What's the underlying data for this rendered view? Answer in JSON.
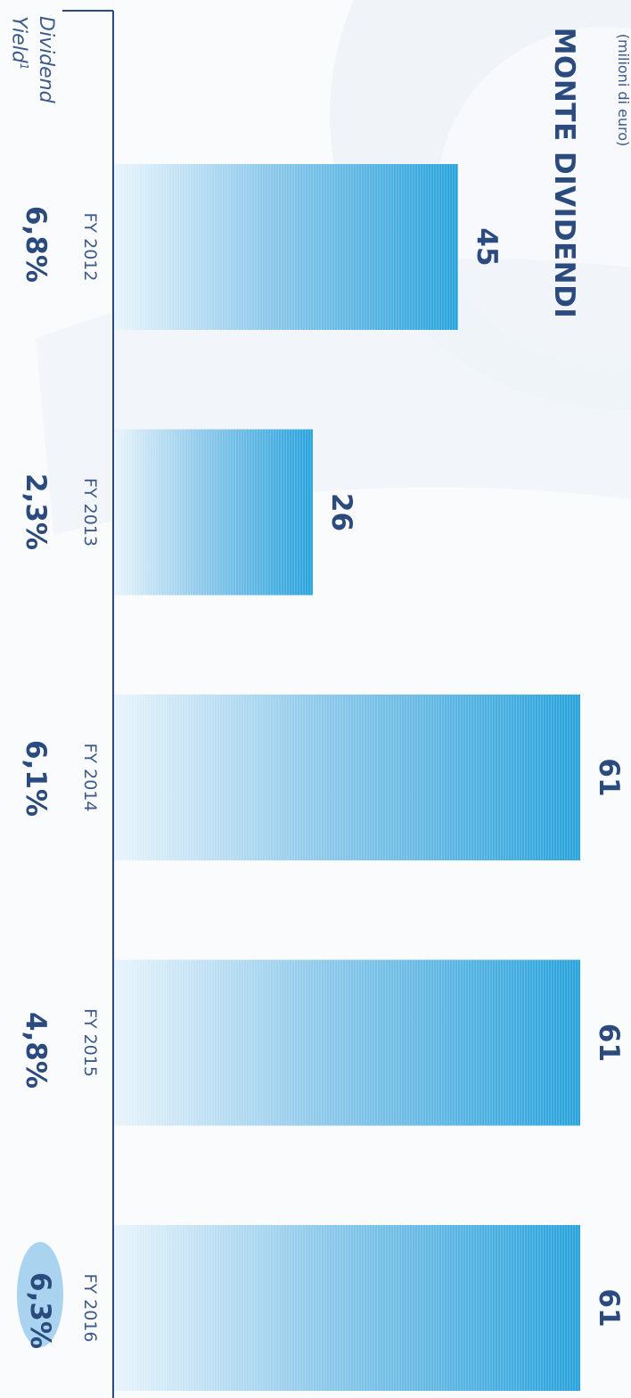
{
  "header": {
    "title": "MONTE DIVIDENDI",
    "unit": "(milioni di euro)"
  },
  "yield_section": {
    "label_line1": "Dividend",
    "label_line2": "Yield",
    "label_sup": "1",
    "values": [
      "6,8%",
      "2,3%",
      "6,1%",
      "4,8%",
      "6,3%"
    ],
    "highlighted_index": 4
  },
  "colors": {
    "bar_start": "#e8f4fb",
    "bar_end": "#29a3dc",
    "axis": "#2b4a7d",
    "text": "#2b4a7d",
    "highlight": "#a9d3ee"
  },
  "chart_data": {
    "type": "bar",
    "orientation": "rotated-90",
    "title": "MONTE DIVIDENDI",
    "subtitle": "(milioni di euro)",
    "categories": [
      "FY 2012",
      "FY 2013",
      "FY 2014",
      "FY 2015",
      "FY 2016"
    ],
    "values": [
      45,
      26,
      61,
      61,
      61
    ],
    "value_labels": [
      "45",
      "26",
      "61",
      "61",
      "61"
    ],
    "ylim": [
      0,
      61
    ],
    "grid": false,
    "legend": "none"
  }
}
